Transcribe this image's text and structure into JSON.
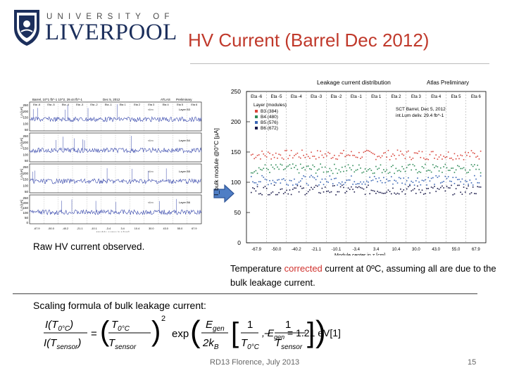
{
  "logo": {
    "top": "UNIVERSITY OF",
    "main": "LIVERPOOL"
  },
  "slide": {
    "title": "HV Current (Barrel Dec 2012)",
    "caption_raw": "Raw HV current observed.",
    "caption_temp_1": "Temperature ",
    "caption_temp_red": "corrected",
    "caption_temp_2": " current at 0ºC, assuming all are due to the bulk leakage current.",
    "caption_scaling": "Scaling formula of bulk leakage current:",
    "footer": "RD13 Florence, July 2013",
    "page": "15"
  },
  "formula": {
    "lhs_num": "I(T",
    "lhs_sub_num": "0°C",
    "lhs_den": "I(T",
    "lhs_sub_den": "sensor",
    "eq": "=",
    "ratio_num": "T",
    "ratio_num_sub": "0°C",
    "ratio_den": "T",
    "ratio_den_sub": "sensor",
    "exp": "exp",
    "egen": "E",
    "egen_sub": "gen",
    "two_kb": "2k",
    "kb_sub": "B",
    "one": "1",
    "minus": "−",
    "square": "2",
    "tail": ", E",
    "tail_sub": "gen",
    "tail_val": " = 1.21 eV[1]"
  },
  "plot_left": {
    "header": "Barrel, 10^1 fb^-1 10^2, 29.44 fb^-1",
    "date": "Dec 5, 2012",
    "tag": "ATLAS",
    "prelim": "Preliminary",
    "xlabel": "Module center in z [cm]",
    "ylabel": "I_n [uA]",
    "eta_labels": [
      "Eta -6",
      "Eta -5",
      "Eta -4",
      "Eta -3",
      "Eta -2",
      "Eta -1",
      "Eta 1",
      "Eta 2",
      "Eta 3",
      "Eta 4",
      "Eta 5",
      "Eta 6"
    ],
    "panels": [
      {
        "layer": "Layer B3",
        "mean": "<I>=",
        "ticks": [
          "250",
          "200",
          "150",
          "100",
          "50"
        ],
        "color": "#3344aa"
      },
      {
        "layer": "Layer B4",
        "mean": "<I>=",
        "ticks": [
          "250",
          "200",
          "150",
          "100",
          "50"
        ],
        "color": "#3344aa"
      },
      {
        "layer": "Layer B5",
        "mean": "<I>=",
        "ticks": [
          "250",
          "200",
          "150",
          "100",
          "50"
        ],
        "color": "#3344aa"
      },
      {
        "layer": "Layer B6",
        "mean": "<I>=",
        "ticks": [
          "250",
          "200",
          "150",
          "100",
          "50",
          "0"
        ],
        "color": "#3344aa"
      }
    ]
  },
  "chart_data": {
    "type": "line",
    "title": "Leakage current distribution",
    "tag": "Atlas Preliminary",
    "xlabel": "Module center in z [cm]",
    "ylabel": "I_bulk module @0°C [µA]",
    "ylim": [
      0,
      250
    ],
    "yticks": [
      "250",
      "200",
      "150",
      "100",
      "50",
      "0"
    ],
    "xticks": [
      "-67.9",
      "-50.0",
      "-40.2",
      "-21.1",
      "-10.1",
      "-3.4",
      "3.4",
      "10.4",
      "30.0",
      "43.0",
      "55.0",
      "67.9"
    ],
    "eta_labels": [
      "Eta -6",
      "Eta -5",
      "Eta -4",
      "Eta -3",
      "Eta -2",
      "Eta -1",
      "Eta 1",
      "Eta 2",
      "Eta 3",
      "Eta 4",
      "Eta 5",
      "Eta 6"
    ],
    "legend_title": "Layer (modules)",
    "legend_position": "top-left",
    "annotations": [
      "SCT Barrel, Dec 5, 2012",
      "int.Lum deliv. 29.4 fb^-1"
    ],
    "series": [
      {
        "name": "B3 (384)",
        "color": "#d9453b",
        "level": 145
      },
      {
        "name": "B4 (480)",
        "color": "#2e8b57",
        "level": 122
      },
      {
        "name": "B5 (576)",
        "color": "#3a66b5",
        "level": 103
      },
      {
        "name": "B6 (672)",
        "color": "#1a1a4a",
        "level": 87
      }
    ]
  }
}
